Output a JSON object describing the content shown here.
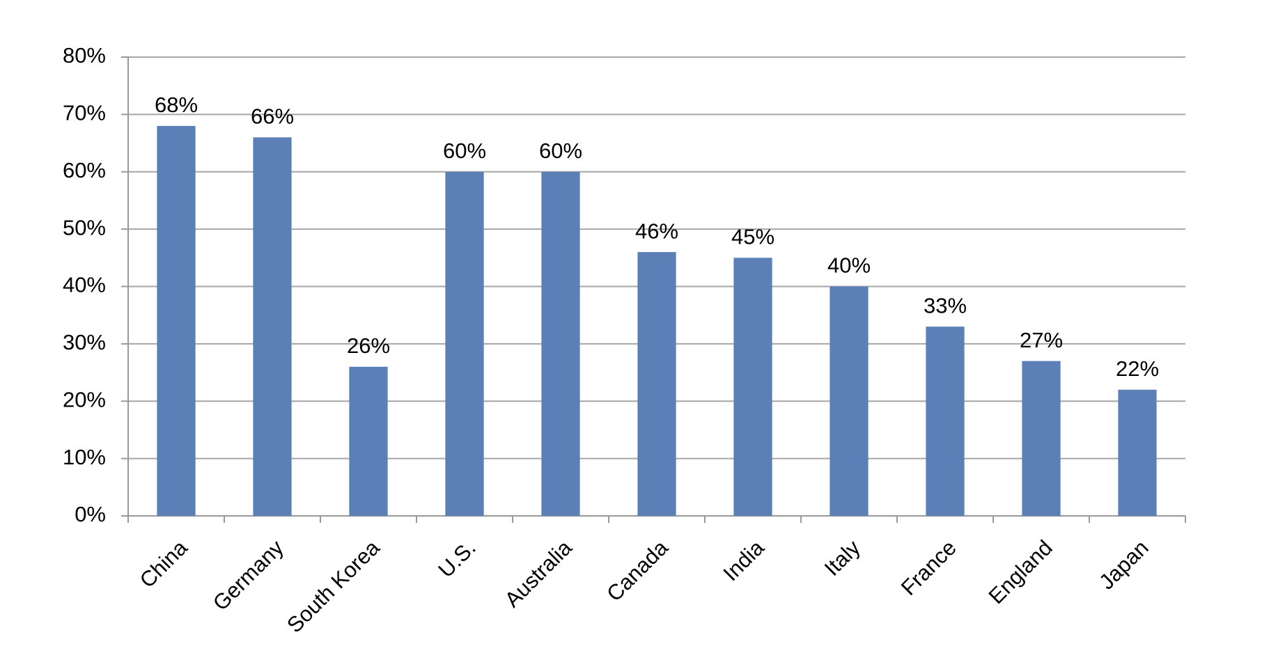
{
  "chart_data": {
    "type": "bar",
    "categories": [
      "China",
      "Germany",
      "South Korea",
      "U.S.",
      "Australia",
      "Canada",
      "India",
      "Italy",
      "France",
      "England",
      "Japan"
    ],
    "values": [
      68,
      66,
      26,
      60,
      60,
      46,
      45,
      40,
      33,
      27,
      22
    ],
    "value_labels": [
      "68%",
      "66%",
      "26%",
      "60%",
      "60%",
      "46%",
      "45%",
      "40%",
      "33%",
      "27%",
      "22%"
    ],
    "color": "#5b7fb6",
    "ylim": [
      0,
      80
    ],
    "yticks": [
      {
        "value": 0,
        "label": "0%"
      },
      {
        "value": 10,
        "label": "10%"
      },
      {
        "value": 20,
        "label": "20%"
      },
      {
        "value": 30,
        "label": "30%"
      },
      {
        "value": 40,
        "label": "40%"
      },
      {
        "value": 50,
        "label": "50%"
      },
      {
        "value": 60,
        "label": "60%"
      },
      {
        "value": 70,
        "label": "70%"
      },
      {
        "value": 80,
        "label": "80%"
      }
    ],
    "grid": true
  }
}
